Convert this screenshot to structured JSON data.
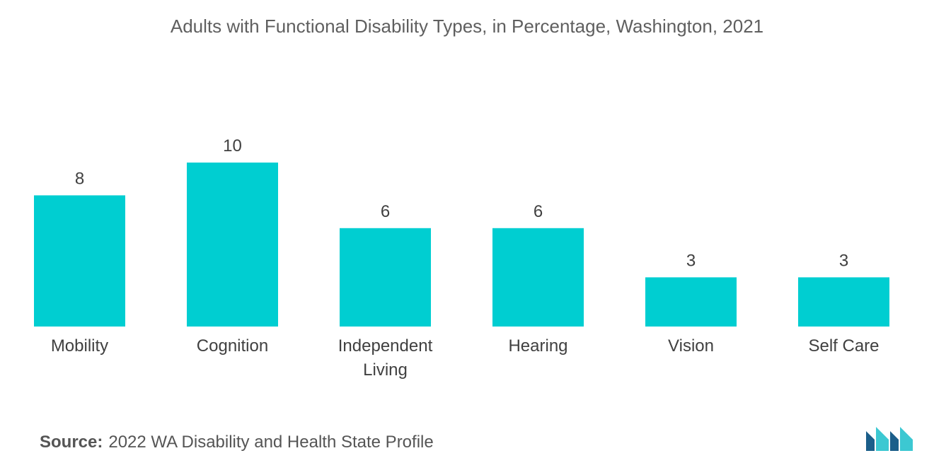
{
  "chart_data": {
    "type": "bar",
    "title": "Adults with Functional Disability Types, in Percentage, Washington, 2021",
    "categories": [
      "Mobility",
      "Cognition",
      "Independent Living",
      "Hearing",
      "Vision",
      "Self Care"
    ],
    "category_lines": [
      [
        "Mobility"
      ],
      [
        "Cognition"
      ],
      [
        "Independent",
        "Living"
      ],
      [
        "Hearing"
      ],
      [
        "Vision"
      ],
      [
        "Self Care"
      ]
    ],
    "values": [
      8,
      10,
      6,
      6,
      3,
      3
    ],
    "data_labels": [
      "8",
      "10",
      "6",
      "6",
      "3",
      "3"
    ],
    "xlabel": "",
    "ylabel": "",
    "ylim": [
      0,
      10
    ],
    "grid": false,
    "legend": "none",
    "bar_color": "#00CED1"
  },
  "source": {
    "label": "Source:",
    "text": "2022 WA Disability and Health State Profile"
  },
  "logo": {
    "icon": "mordor-intelligence-logo-icon",
    "color_dark": "#1b5e8a",
    "color_light": "#3cc8d2"
  }
}
